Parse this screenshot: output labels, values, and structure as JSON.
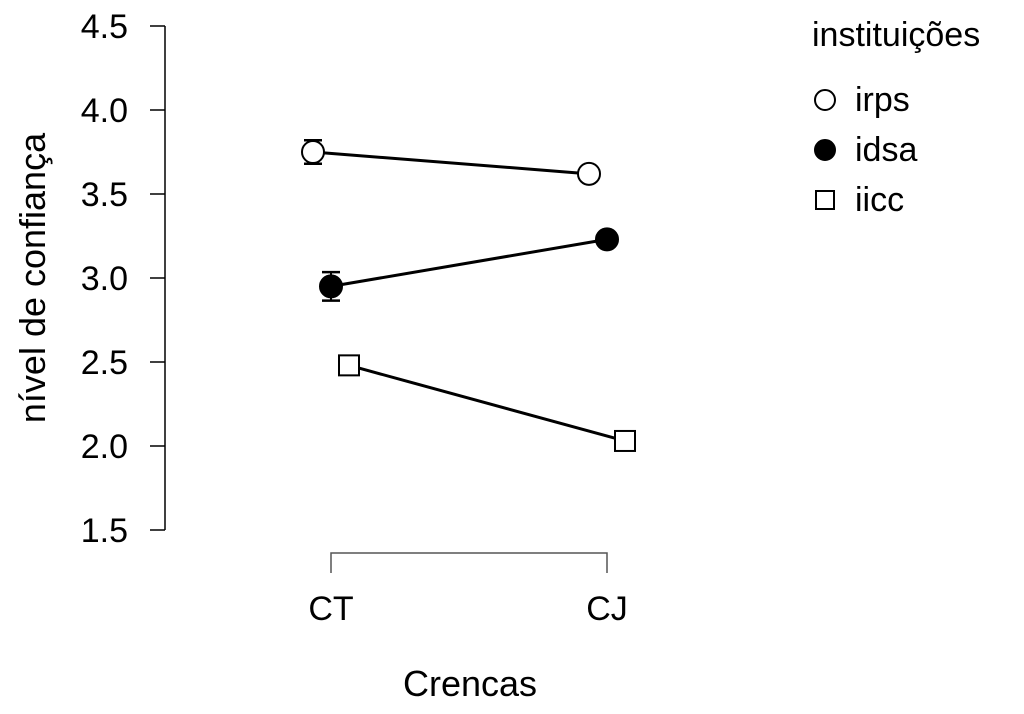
{
  "chart_data": {
    "type": "line",
    "title": "",
    "xlabel": "Crencas",
    "ylabel": "nível de confiança",
    "categories": [
      "CT",
      "CJ"
    ],
    "ylim": [
      1.5,
      4.5
    ],
    "yticks": [
      "1.5",
      "2.0",
      "2.5",
      "3.0",
      "3.5",
      "4.0",
      "4.5"
    ],
    "grid": false,
    "legend": {
      "title": "instituições",
      "placement": "right"
    },
    "series": [
      {
        "name": "irps",
        "marker": "open-circle",
        "values": [
          3.75,
          3.62
        ],
        "errors": [
          0.07,
          0.02
        ]
      },
      {
        "name": "idsa",
        "marker": "filled-circle",
        "values": [
          2.95,
          3.23
        ],
        "errors": [
          0.085,
          0.02
        ]
      },
      {
        "name": "iicc",
        "marker": "open-square",
        "values": [
          2.48,
          2.03
        ],
        "errors": [
          0.02,
          0.01
        ]
      }
    ]
  }
}
